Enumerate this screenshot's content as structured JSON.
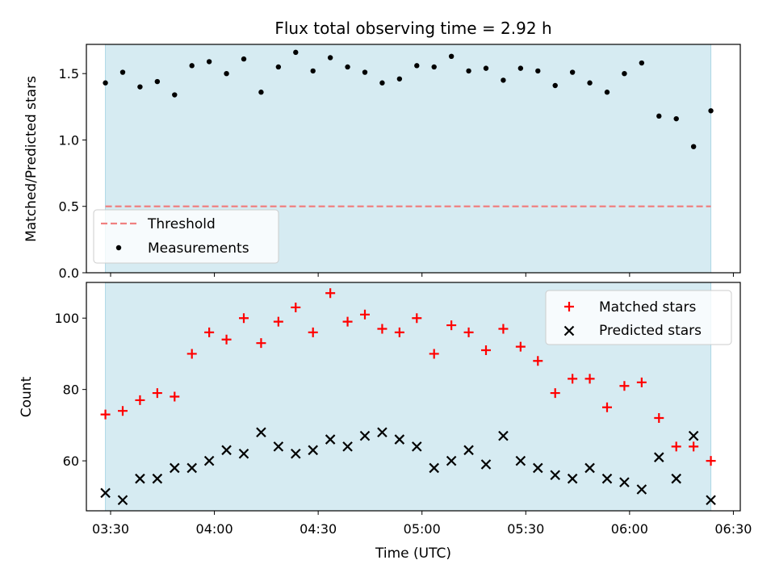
{
  "chart_data": [
    {
      "type": "scatter",
      "title": "Flux total observing time = 2.92 h",
      "ylabel": "Matched/Predicted stars",
      "xlabel": "",
      "xlim": [
        "03:23:00",
        "06:32:00"
      ],
      "ylim": [
        0,
        1.72
      ],
      "yticks": [
        "0.0",
        "0.5",
        "1.0",
        "1.5"
      ],
      "shaded_interval": {
        "start": "03:28:30",
        "end": "06:23:30",
        "color": "#add8e6"
      },
      "threshold": {
        "name": "Threshold",
        "value": 0.5,
        "color": "#f08080",
        "start": "03:28:30",
        "end": "06:23:30"
      },
      "legend": {
        "placement": "lower-left",
        "entries": [
          "Threshold",
          "Measurements"
        ]
      },
      "series": [
        {
          "name": "Measurements",
          "color": "#000000",
          "marker": "dot",
          "x": [
            "03:28:30",
            "03:33:30",
            "03:38:30",
            "03:43:30",
            "03:48:30",
            "03:53:30",
            "03:58:30",
            "04:03:30",
            "04:08:30",
            "04:13:30",
            "04:18:30",
            "04:23:30",
            "04:28:30",
            "04:33:30",
            "04:38:30",
            "04:43:30",
            "04:48:30",
            "04:53:30",
            "04:58:30",
            "05:03:30",
            "05:08:30",
            "05:13:30",
            "05:18:30",
            "05:23:30",
            "05:28:30",
            "05:33:30",
            "05:38:30",
            "05:43:30",
            "05:48:30",
            "05:53:30",
            "05:58:30",
            "06:03:30",
            "06:08:30",
            "06:13:30",
            "06:18:30",
            "06:23:30"
          ],
          "values": [
            1.43,
            1.51,
            1.4,
            1.44,
            1.34,
            1.56,
            1.59,
            1.5,
            1.61,
            1.36,
            1.55,
            1.66,
            1.52,
            1.62,
            1.55,
            1.51,
            1.43,
            1.46,
            1.56,
            1.55,
            1.63,
            1.52,
            1.54,
            1.45,
            1.54,
            1.52,
            1.41,
            1.51,
            1.43,
            1.36,
            1.5,
            1.58,
            1.18,
            1.16,
            0.95,
            1.22
          ]
        }
      ]
    },
    {
      "type": "scatter",
      "title": "",
      "ylabel": "Count",
      "xlabel": "Time (UTC)",
      "xlim": [
        "03:23:00",
        "06:32:00"
      ],
      "ylim": [
        46,
        110
      ],
      "yticks": [
        "60",
        "80",
        "100"
      ],
      "xticks": [
        "03:30",
        "04:00",
        "04:30",
        "05:00",
        "05:30",
        "06:00",
        "06:30"
      ],
      "shaded_interval": {
        "start": "03:28:30",
        "end": "06:23:30",
        "color": "#add8e6"
      },
      "legend": {
        "placement": "top-right",
        "entries": [
          "Matched stars",
          "Predicted stars"
        ]
      },
      "series": [
        {
          "name": "Matched stars",
          "color": "#ff0000",
          "marker": "plus",
          "x": [
            "03:28:30",
            "03:33:30",
            "03:38:30",
            "03:43:30",
            "03:48:30",
            "03:53:30",
            "03:58:30",
            "04:03:30",
            "04:08:30",
            "04:13:30",
            "04:18:30",
            "04:23:30",
            "04:28:30",
            "04:33:30",
            "04:38:30",
            "04:43:30",
            "04:48:30",
            "04:53:30",
            "04:58:30",
            "05:03:30",
            "05:08:30",
            "05:13:30",
            "05:18:30",
            "05:23:30",
            "05:28:30",
            "05:33:30",
            "05:38:30",
            "05:43:30",
            "05:48:30",
            "05:53:30",
            "05:58:30",
            "06:03:30",
            "06:08:30",
            "06:13:30",
            "06:18:30",
            "06:23:30"
          ],
          "values": [
            73,
            74,
            77,
            79,
            78,
            90,
            96,
            94,
            100,
            93,
            99,
            103,
            96,
            107,
            99,
            101,
            97,
            96,
            100,
            90,
            98,
            96,
            91,
            97,
            92,
            88,
            79,
            83,
            83,
            75,
            81,
            82,
            72,
            64,
            64,
            60
          ]
        },
        {
          "name": "Predicted stars",
          "color": "#000000",
          "marker": "x",
          "x": [
            "03:28:30",
            "03:33:30",
            "03:38:30",
            "03:43:30",
            "03:48:30",
            "03:53:30",
            "03:58:30",
            "04:03:30",
            "04:08:30",
            "04:13:30",
            "04:18:30",
            "04:23:30",
            "04:28:30",
            "04:33:30",
            "04:38:30",
            "04:43:30",
            "04:48:30",
            "04:53:30",
            "04:58:30",
            "05:03:30",
            "05:08:30",
            "05:13:30",
            "05:18:30",
            "05:23:30",
            "05:28:30",
            "05:33:30",
            "05:38:30",
            "05:43:30",
            "05:48:30",
            "05:53:30",
            "05:58:30",
            "06:03:30",
            "06:08:30",
            "06:13:30",
            "06:18:30",
            "06:23:30"
          ],
          "values": [
            51,
            49,
            55,
            55,
            58,
            58,
            60,
            63,
            62,
            68,
            64,
            62,
            63,
            66,
            64,
            67,
            68,
            66,
            64,
            58,
            60,
            63,
            59,
            67,
            60,
            58,
            56,
            55,
            58,
            55,
            54,
            52,
            61,
            55,
            67,
            49
          ]
        }
      ]
    }
  ]
}
